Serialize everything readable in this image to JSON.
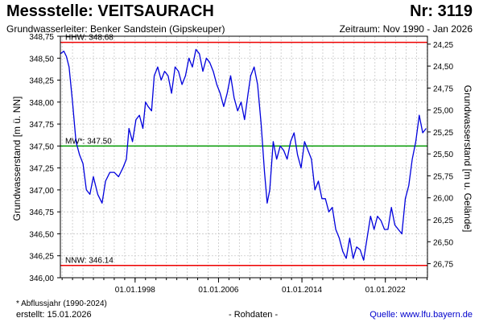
{
  "header": {
    "station_title": "Messstelle: VEITSAURACH",
    "station_number": "Nr: 3119",
    "aquifer": "Grundwasserleiter:   Benker Sandstein (Gipskeuper)",
    "period": "Zeitraum: Nov 1990 - Jan 2026"
  },
  "footer": {
    "note": "* Abflussjahr (1990-2024)",
    "created": "erstellt:   15.01.2026",
    "raw": "- Rohdaten -",
    "source": "Quelle: www.lfu.bayern.de"
  },
  "colors": {
    "series": "#0000dd",
    "limit_lines": "#ee0000",
    "mean_line": "#009900",
    "grid": "#c8c8c8"
  },
  "chart_data": {
    "type": "line",
    "ylabel_left": "Grundwasserstand [m ü. NN]",
    "ylabel_right": "Grundwasserstand [m u. Gelände]",
    "xlim": [
      "1990-11-01",
      "2026-01-15"
    ],
    "ylim": [
      346.0,
      348.75
    ],
    "x_ticks": [
      "1998-01-01",
      "2006-01-01",
      "2014-01-01",
      "2022-01-01"
    ],
    "x_tick_labels": [
      "01.01.1998",
      "01.01.2006",
      "01.01.2014",
      "01.01.2022"
    ],
    "y_ticks_left": [
      346.0,
      346.25,
      346.5,
      346.75,
      347.0,
      347.25,
      347.5,
      347.75,
      348.0,
      348.25,
      348.5,
      348.75
    ],
    "y_tick_labels_left": [
      "346,00",
      "346,25",
      "346,50",
      "346,75",
      "347,00",
      "347,25",
      "347,50",
      "347,75",
      "348,00",
      "348,25",
      "348,50",
      "348,75"
    ],
    "y_ticks_right_depth": [
      24.25,
      24.5,
      24.75,
      25.0,
      25.25,
      25.5,
      25.75,
      26.0,
      26.25,
      26.5,
      26.75
    ],
    "y_tick_labels_right": [
      "24,25",
      "24,50",
      "24,75",
      "25,00",
      "25,25",
      "25,50",
      "25,75",
      "26,00",
      "26,25",
      "26,50",
      "26,75"
    ],
    "grid": true,
    "reference_lines": [
      {
        "label": "HHW: 348.68",
        "value": 348.68,
        "color_key": "limit_lines"
      },
      {
        "label": "MW*: 347.50",
        "value": 347.5,
        "color_key": "mean_line"
      },
      {
        "label": "NNW: 346.14",
        "value": 346.14,
        "color_key": "limit_lines"
      }
    ],
    "series": [
      {
        "x": [
          "1990-11-01",
          "1991-03-01",
          "1991-06-01",
          "1991-09-01",
          "1992-01-01",
          "1992-05-01",
          "1992-09-01",
          "1993-01-01",
          "1993-05-01",
          "1993-09-01",
          "1994-01-01",
          "1994-06-01",
          "1994-11-01",
          "1995-03-01",
          "1995-08-01",
          "1996-01-01",
          "1996-06-01",
          "1996-11-01",
          "1997-03-01",
          "1997-06-01",
          "1997-10-01",
          "1998-02-01",
          "1998-06-01",
          "1998-10-01",
          "1999-01-01",
          "1999-04-01",
          "1999-08-01",
          "1999-11-01",
          "2000-03-01",
          "2000-07-01",
          "2000-11-01",
          "2001-03-01",
          "2001-07-01",
          "2001-11-01",
          "2002-03-01",
          "2002-07-01",
          "2002-11-01",
          "2003-03-01",
          "2003-07-01",
          "2003-11-01",
          "2004-03-01",
          "2004-07-01",
          "2004-11-01",
          "2005-03-01",
          "2005-07-01",
          "2005-11-01",
          "2006-03-01",
          "2006-07-01",
          "2006-11-01",
          "2007-03-01",
          "2007-07-01",
          "2007-11-01",
          "2008-03-01",
          "2008-07-01",
          "2008-11-01",
          "2009-02-01",
          "2009-06-01",
          "2009-10-01",
          "2010-02-01",
          "2010-06-01",
          "2010-09-01",
          "2010-12-01",
          "2011-04-01",
          "2011-08-01",
          "2011-12-01",
          "2012-04-01",
          "2012-08-01",
          "2012-12-01",
          "2013-04-01",
          "2013-08-01",
          "2013-12-01",
          "2014-04-01",
          "2014-08-01",
          "2014-12-01",
          "2015-04-01",
          "2015-08-01",
          "2015-12-01",
          "2016-04-01",
          "2016-08-01",
          "2016-12-01",
          "2017-04-01",
          "2017-08-01",
          "2017-12-01",
          "2018-04-01",
          "2018-08-01",
          "2018-12-01",
          "2019-04-01",
          "2019-08-01",
          "2019-12-01",
          "2020-04-01",
          "2020-08-01",
          "2020-12-01",
          "2021-04-01",
          "2021-08-01",
          "2021-12-01",
          "2022-04-01",
          "2022-08-01",
          "2022-12-01",
          "2023-04-01",
          "2023-08-01",
          "2023-12-01",
          "2024-04-01",
          "2024-08-01",
          "2024-12-01",
          "2025-04-01",
          "2025-08-01",
          "2025-12-01"
        ],
        "y": [
          348.55,
          348.58,
          348.52,
          348.4,
          348.0,
          347.55,
          347.4,
          347.3,
          347.0,
          346.95,
          347.15,
          346.95,
          346.85,
          347.1,
          347.2,
          347.2,
          347.15,
          347.25,
          347.35,
          347.7,
          347.55,
          347.8,
          347.85,
          347.7,
          348.0,
          347.95,
          347.9,
          348.3,
          348.4,
          348.25,
          348.35,
          348.3,
          348.1,
          348.4,
          348.35,
          348.2,
          348.3,
          348.5,
          348.4,
          348.6,
          348.55,
          348.35,
          348.5,
          348.45,
          348.35,
          348.2,
          348.1,
          347.95,
          348.1,
          348.3,
          348.05,
          347.9,
          348.0,
          347.8,
          348.1,
          348.3,
          348.4,
          348.2,
          347.75,
          347.2,
          346.85,
          347.0,
          347.55,
          347.35,
          347.5,
          347.45,
          347.35,
          347.55,
          347.65,
          347.4,
          347.25,
          347.55,
          347.45,
          347.35,
          347.0,
          347.1,
          346.9,
          346.9,
          346.75,
          346.8,
          346.55,
          346.45,
          346.3,
          346.22,
          346.45,
          346.22,
          346.35,
          346.32,
          346.2,
          346.45,
          346.7,
          346.55,
          346.7,
          346.65,
          346.55,
          346.55,
          346.8,
          346.6,
          346.55,
          346.5,
          346.9,
          347.05,
          347.35,
          347.55,
          347.85,
          347.65,
          347.7
        ]
      }
    ]
  }
}
